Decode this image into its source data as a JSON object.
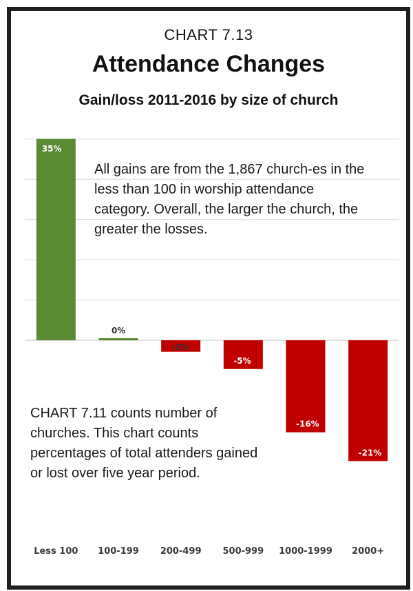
{
  "header": {
    "kicker": "CHART 7.13",
    "title": "Attendance Changes",
    "subtitle": "Gain/loss 2011-2016 by size of church"
  },
  "notes": {
    "note1": "All gains are from the 1,867 church-es in the less than 100 in worship attendance category. Overall, the larger the church, the greater the losses.",
    "note2": "CHART 7.11 counts number of churches. This chart counts percentages of total attenders gained or lost over five year period."
  },
  "colors": {
    "positive": "#5b8a34",
    "negative": "#c00000",
    "gridline": "#d9d9d9",
    "frame": "#1f1f1f"
  },
  "chart_data": {
    "type": "bar",
    "categories": [
      "Less 100",
      "100-199",
      "200-499",
      "500-999",
      "1000-1999",
      "2000+"
    ],
    "values": [
      35,
      0,
      -2,
      -5,
      -16,
      -21
    ],
    "data_labels": [
      "35%",
      "0%",
      "-2%",
      "-5%",
      "-16%",
      "-21%"
    ],
    "title": "Attendance Changes",
    "subtitle": "Gain/loss 2011-2016 by size of church",
    "ylim": [
      -22,
      35
    ],
    "grid": true
  }
}
